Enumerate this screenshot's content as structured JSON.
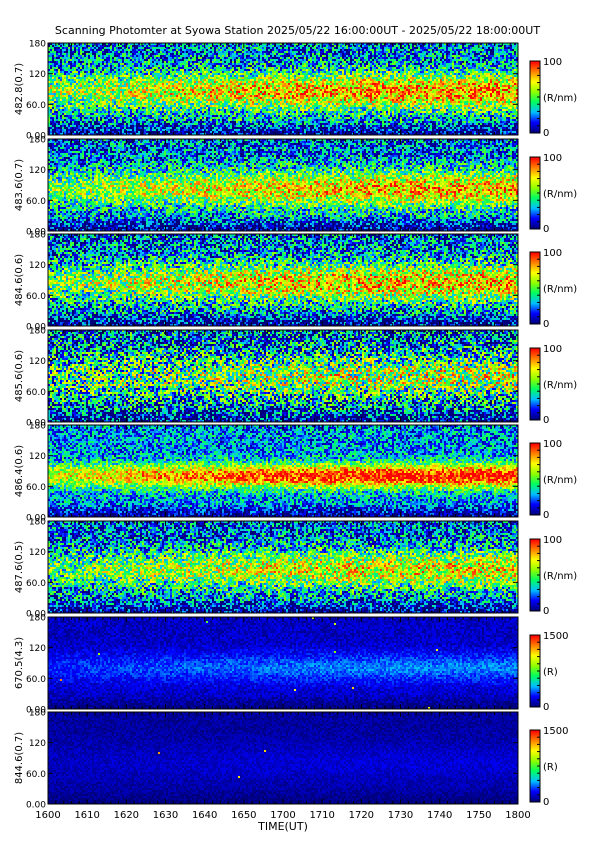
{
  "chart_data": {
    "type": "heatmap",
    "title": "Scanning Photomter at Syowa Station 2025/05/22 16:00:00UT - 2025/05/22 18:00:00UT",
    "xlabel": "TIME(UT)",
    "x_ticks": [
      "1600",
      "1610",
      "1620",
      "1630",
      "1640",
      "1650",
      "1700",
      "1710",
      "1720",
      "1730",
      "1740",
      "1750",
      "1800"
    ],
    "y_ticks": [
      "0.00",
      "60.0",
      "120",
      "180"
    ],
    "ylim": [
      0,
      180
    ],
    "colormap": [
      "#00007a",
      "#0000ff",
      "#00c0ff",
      "#00ff60",
      "#90ff00",
      "#ffff00",
      "#ff8000",
      "#ff0000"
    ],
    "panels": [
      {
        "ylabel": "482.8(0.7)",
        "cbar_max": "100",
        "cbar_min": "0",
        "cbar_unit": "(R/nm)",
        "peak": 0.58,
        "noise": 0.3,
        "center": 85,
        "width": 38,
        "glow": 0.42
      },
      {
        "ylabel": "483.6(0.7)",
        "cbar_max": "100",
        "cbar_min": "0",
        "cbar_unit": "(R/nm)",
        "peak": 0.55,
        "noise": 0.28,
        "center": 82,
        "width": 38,
        "glow": 0.4
      },
      {
        "ylabel": "484.6(0.6)",
        "cbar_max": "100",
        "cbar_min": "0",
        "cbar_unit": "(R/nm)",
        "peak": 0.56,
        "noise": 0.32,
        "center": 85,
        "width": 40,
        "glow": 0.38
      },
      {
        "ylabel": "485.6(0.6)",
        "cbar_max": "100",
        "cbar_min": "0",
        "cbar_unit": "(R/nm)",
        "peak": 0.42,
        "noise": 0.38,
        "center": 88,
        "width": 45,
        "glow": 0.34
      },
      {
        "ylabel": "486.4(0.6)",
        "cbar_max": "100",
        "cbar_min": "0",
        "cbar_unit": "(R/nm)",
        "peak": 0.74,
        "noise": 0.22,
        "center": 80,
        "width": 24,
        "glow": 0.46
      },
      {
        "ylabel": "487.6(0.5)",
        "cbar_max": "100",
        "cbar_min": "0",
        "cbar_unit": "(R/nm)",
        "peak": 0.5,
        "noise": 0.3,
        "center": 85,
        "width": 40,
        "glow": 0.36
      },
      {
        "ylabel": "670.5(4.3)",
        "cbar_max": "1500",
        "cbar_min": "0",
        "cbar_unit": "(R)",
        "peak": 0.16,
        "noise": 0.06,
        "center": 80,
        "width": 30,
        "glow": 0.14
      },
      {
        "ylabel": "844.6(0.7)",
        "cbar_max": "1500",
        "cbar_min": "0",
        "cbar_unit": "(R)",
        "peak": 0.06,
        "noise": 0.04,
        "center": 80,
        "width": 40,
        "glow": 0.07
      }
    ]
  }
}
